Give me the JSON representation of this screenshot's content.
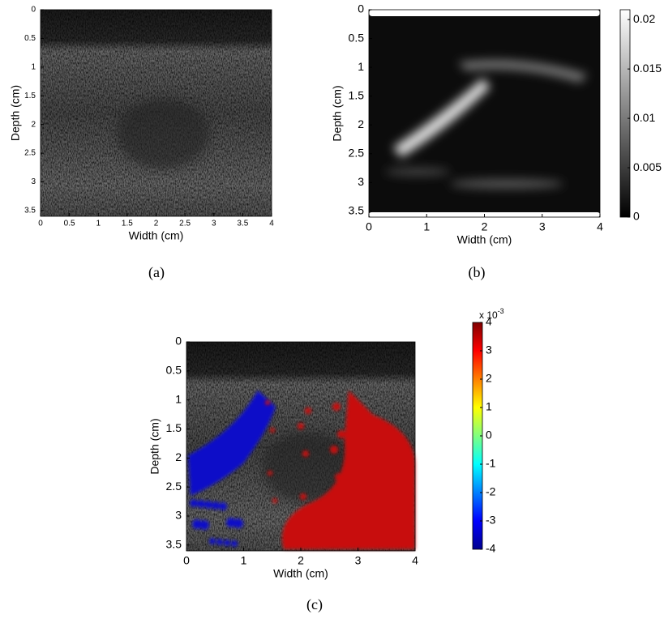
{
  "panels": [
    {
      "caption": "(a)",
      "x_label": "Width (cm)",
      "y_label": "Depth (cm)",
      "xlim": [
        0,
        4
      ],
      "ylim": [
        0,
        3.6
      ],
      "xticks": [
        0,
        0.5,
        1,
        1.5,
        2,
        2.5,
        3,
        3.5,
        4
      ],
      "yticks": [
        0,
        0.5,
        1,
        1.5,
        2,
        2.5,
        3,
        3.5
      ]
    },
    {
      "caption": "(b)",
      "x_label": "Width (cm)",
      "y_label": "Depth (cm)",
      "xlim": [
        0,
        4
      ],
      "ylim": [
        0,
        3.6
      ],
      "xticks": [
        0,
        1,
        2,
        3,
        4
      ],
      "yticks": [
        0,
        0.5,
        1,
        1.5,
        2,
        2.5,
        3,
        3.5
      ],
      "colorbar": {
        "lim": [
          0,
          0.021
        ],
        "ticks": [
          0,
          0.005,
          0.01,
          0.015,
          0.02
        ]
      }
    },
    {
      "caption": "(c)",
      "x_label": "Width (cm)",
      "y_label": "Depth (cm)",
      "xlim": [
        0,
        4
      ],
      "ylim": [
        0,
        3.6
      ],
      "xticks": [
        0,
        1,
        2,
        3,
        4
      ],
      "yticks": [
        0,
        0.5,
        1,
        1.5,
        2,
        2.5,
        3,
        3.5
      ],
      "colorbar": {
        "lim": [
          -4,
          4
        ],
        "ticks": [
          -4,
          -3,
          -2,
          -1,
          0,
          1,
          2,
          3,
          4
        ],
        "multiplier": "x 10",
        "exponent": "-3"
      }
    }
  ]
}
